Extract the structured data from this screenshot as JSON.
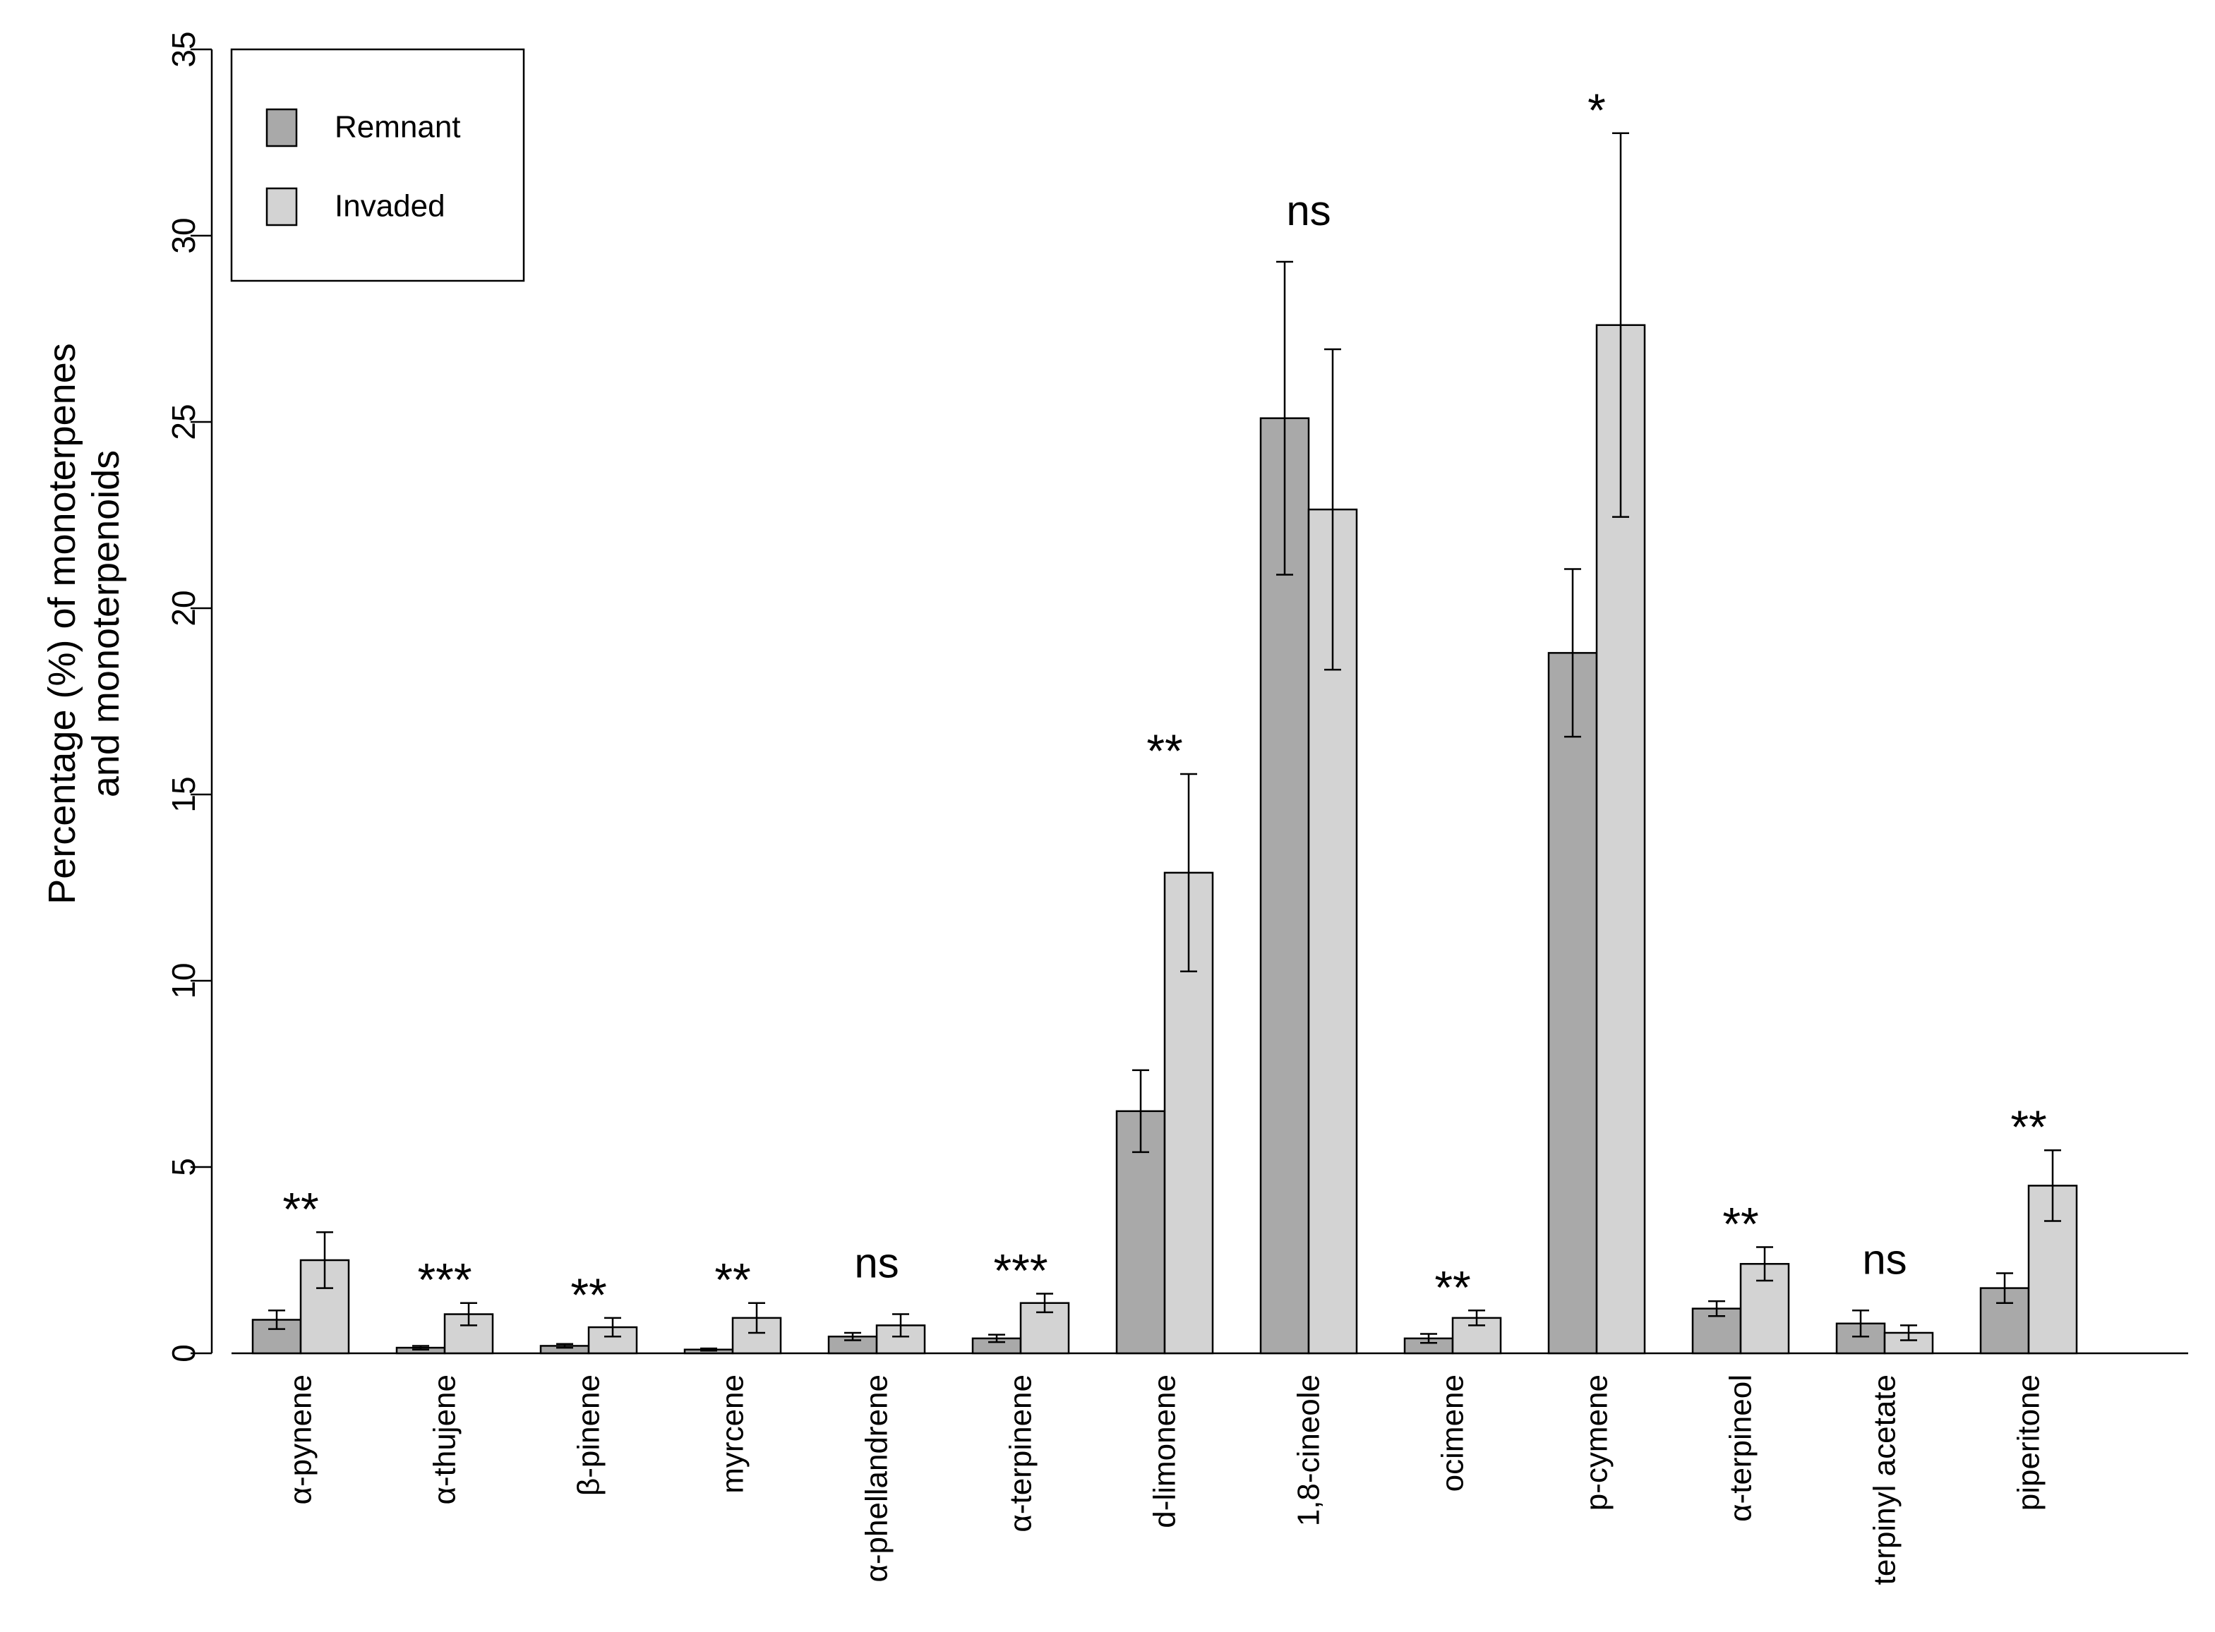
{
  "chart_data": {
    "type": "bar",
    "title": "",
    "xlabel": "",
    "ylabel_lines": [
      "Percentage (%) of monoterpenes",
      "and monoterpenoids"
    ],
    "ylim": [
      0,
      35
    ],
    "yticks": [
      0,
      5,
      10,
      15,
      20,
      25,
      30,
      35
    ],
    "grid": false,
    "legend_position": "top-left",
    "categories": [
      "α-pynene",
      "α-thujene",
      "β-pinene",
      "myrcene",
      "α-phellandrene",
      "α-terpinene",
      "d-limonene",
      "1,8-cineole",
      "ocimene",
      "p-cymene",
      "α-terpineol",
      "terpinyl acetate",
      "piperitone"
    ],
    "series": [
      {
        "name": "Remnant",
        "color": "#a9a9a9",
        "values": [
          0.9,
          0.15,
          0.2,
          0.1,
          0.45,
          0.4,
          6.5,
          25.1,
          0.4,
          18.8,
          1.2,
          0.8,
          1.75
        ],
        "error": [
          0.25,
          0.05,
          0.05,
          0.03,
          0.1,
          0.1,
          1.1,
          4.2,
          0.12,
          2.25,
          0.2,
          0.35,
          0.4
        ]
      },
      {
        "name": "Invaded",
        "color": "#d3d3d3",
        "values": [
          2.5,
          1.05,
          0.7,
          0.95,
          0.75,
          1.35,
          12.9,
          22.65,
          0.95,
          27.6,
          2.4,
          0.55,
          4.5
        ]
      }
    ],
    "invaded_error": [
      0.75,
      0.3,
      0.25,
      0.4,
      0.3,
      0.25,
      2.65,
      4.3,
      0.2,
      5.15,
      0.45,
      0.2,
      0.95
    ],
    "significance": [
      "**",
      "***",
      "**",
      "**",
      "ns",
      "***",
      "**",
      "ns",
      "**",
      "*",
      "**",
      "ns",
      "**"
    ]
  }
}
